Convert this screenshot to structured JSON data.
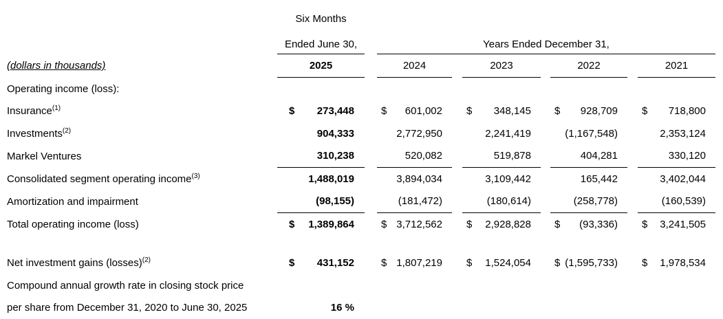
{
  "currency_symbol": "$",
  "title_block": {
    "period_line1": "Six Months",
    "period_line2": "Ended June 30,",
    "years_header": "Years Ended December 31,",
    "units_note": "(dollars in thousands)",
    "year_columns": [
      "2025",
      "2024",
      "2023",
      "2022",
      "2021"
    ]
  },
  "table": {
    "section_header": "Operating income (loss):",
    "rows": [
      {
        "name": "insurance",
        "label": "Insurance",
        "sup": "(1)",
        "dollar": true,
        "values": [
          "273,448",
          "601,002",
          "348,145",
          "928,709",
          "718,800"
        ]
      },
      {
        "name": "investments",
        "label": "Investments",
        "sup": "(2)",
        "dollar": false,
        "values": [
          "904,333",
          "2,772,950",
          "2,241,419",
          "(1,167,548)",
          "2,353,124"
        ]
      },
      {
        "name": "markel-ventures",
        "label": "Markel Ventures",
        "sup": "",
        "dollar": false,
        "values": [
          "310,238",
          "520,082",
          "519,878",
          "404,281",
          "330,120"
        ]
      },
      {
        "name": "consolidated-segment-operating-income",
        "label": "Consolidated segment operating income",
        "sup": "(3)",
        "dollar": false,
        "rule_above": true,
        "values": [
          "1,488,019",
          "3,894,034",
          "3,109,442",
          "165,442",
          "3,402,044"
        ]
      },
      {
        "name": "amortization-and-impairment",
        "label": "Amortization and impairment",
        "sup": "",
        "dollar": false,
        "values": [
          "(98,155)",
          "(181,472)",
          "(180,614)",
          "(258,778)",
          "(160,539)"
        ]
      },
      {
        "name": "total-operating-income",
        "label": "Total operating income (loss)",
        "sup": "",
        "dollar": true,
        "rule_above": true,
        "values": [
          "1,389,864",
          "3,712,562",
          "2,928,828",
          "(93,336)",
          "3,241,505"
        ]
      },
      {
        "name": "blank",
        "spacer": true
      },
      {
        "name": "net-investment-gains",
        "label": "Net investment gains (losses)",
        "sup": "(2)",
        "dollar": true,
        "values": [
          "431,152",
          "1,807,219",
          "1,524,054",
          "(1,595,733)",
          "1,978,534"
        ]
      }
    ],
    "cagr": {
      "label_line1": "Compound annual growth rate in closing stock price",
      "label_line2": "per share from December 31, 2020 to June 30, 2025",
      "value": "16 %"
    }
  }
}
